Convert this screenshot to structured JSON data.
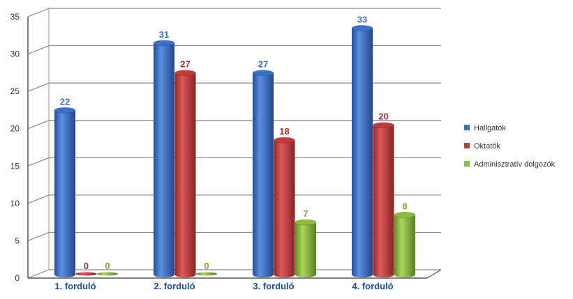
{
  "chart_data": {
    "type": "bar",
    "style": "3d-cylinder",
    "categories": [
      "1. forduló",
      "2. forduló",
      "3. forduló",
      "4. forduló"
    ],
    "series": [
      {
        "name": "Hallgatók",
        "values": [
          22,
          31,
          27,
          33
        ],
        "color": "#3b6fc9",
        "label_color": "#3b6fc9"
      },
      {
        "name": "Oktatók",
        "values": [
          0,
          27,
          18,
          20
        ],
        "color": "#c23b3b",
        "label_color": "#a93232"
      },
      {
        "name": "Adminisztratív dolgozók",
        "values": [
          0,
          0,
          7,
          8
        ],
        "color": "#8dbb3e",
        "label_color": "#7aa83a"
      }
    ],
    "ylim": [
      0,
      35
    ],
    "yticks": [
      0,
      5,
      10,
      15,
      20,
      25,
      30,
      35
    ],
    "grid": true,
    "legend_position": "right",
    "title": "",
    "xlabel": "",
    "ylabel": ""
  }
}
